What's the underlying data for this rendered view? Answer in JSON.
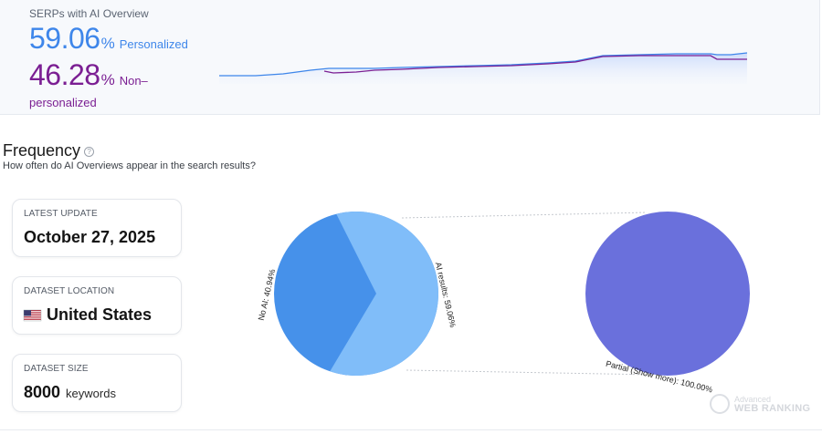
{
  "summary": {
    "label": "SERPs with AI Overview",
    "personalized": {
      "value": "59.06",
      "pct": "%",
      "word": "Personalized"
    },
    "non_personalized": {
      "value": "46.28",
      "pct": "%",
      "word_1": "Non–",
      "word_2": "personalized"
    },
    "colors": {
      "personalized": "#3e86ea",
      "non_personalized": "#7b1f93"
    }
  },
  "frequency": {
    "title": "Frequency",
    "help_icon": "?",
    "subtitle": "How often do AI Overviews appear in the search results?"
  },
  "cards": [
    {
      "label": "LATEST UPDATE",
      "value": "October 27, 2025"
    },
    {
      "label": "DATASET LOCATION",
      "value": "United States",
      "icon": "us-flag-icon"
    },
    {
      "label": "DATASET SIZE",
      "value": "8000",
      "unit": "keywords"
    }
  ],
  "chart_data": {
    "type": "pie",
    "pies": [
      {
        "slices": [
          {
            "label": "AI results: 59.06%",
            "value": 59.06,
            "color": "#80bdf9"
          },
          {
            "label": "No AI: 40.94%",
            "value": 40.94,
            "color": "#4691ea"
          }
        ]
      },
      {
        "slices": [
          {
            "label": "Partial (Show more): 100.00%",
            "value": 100.0,
            "color": "#6a70dc"
          }
        ]
      }
    ]
  },
  "watermark": {
    "line1": "Advanced",
    "line2": "WEB RANKING"
  }
}
